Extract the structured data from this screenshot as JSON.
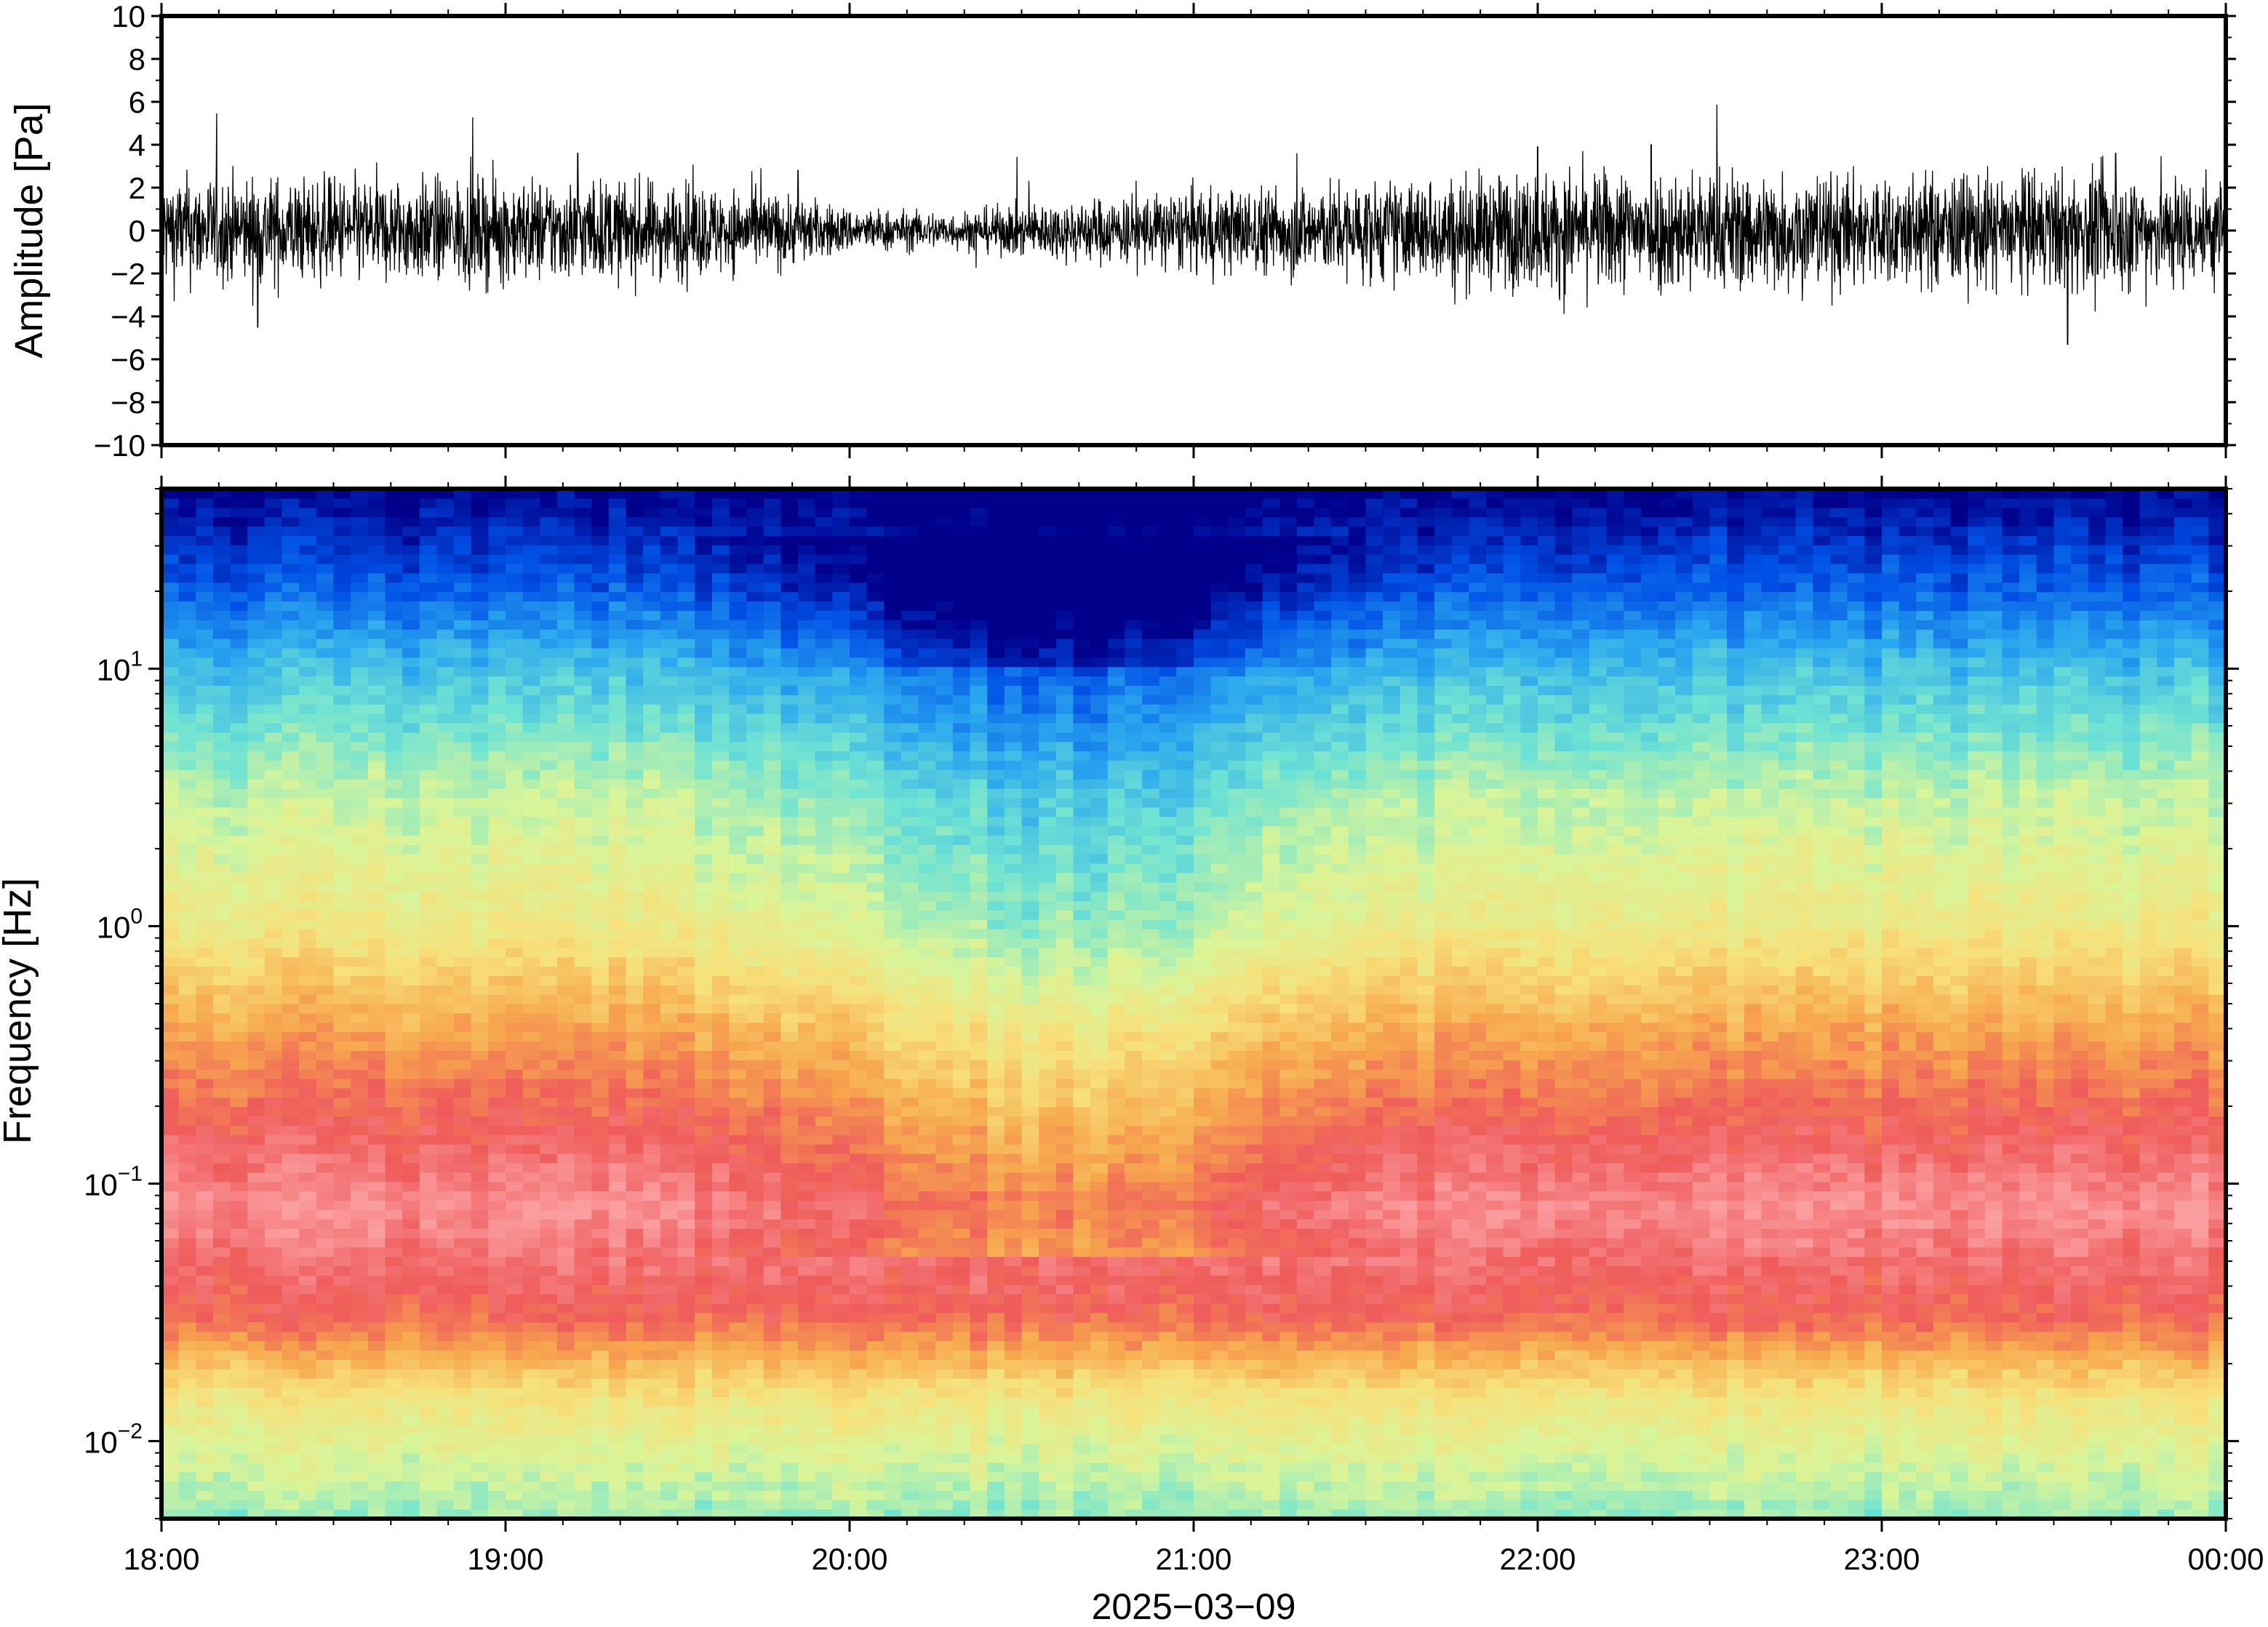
{
  "chart_data": [
    {
      "type": "line",
      "panel": "waveform",
      "ylabel": "Amplitude [Pa]",
      "ylim": [
        -10,
        10
      ],
      "yticks": [
        "10",
        "8",
        "6",
        "4",
        "2",
        "0",
        "−2",
        "−4",
        "−6",
        "−8",
        "−10"
      ],
      "ytick_values": [
        10,
        8,
        6,
        4,
        2,
        0,
        -2,
        -4,
        -6,
        -8,
        -10
      ],
      "xlim": [
        "18:00",
        "00:00"
      ],
      "line_color": "#000000",
      "envelope": {
        "times_h": [
          18.0,
          18.5,
          19.0,
          19.5,
          19.8,
          20.0,
          20.3,
          20.5,
          21.0,
          21.5,
          22.0,
          22.5,
          23.0,
          23.5,
          24.0
        ],
        "amplitude_pa": [
          1.5,
          1.4,
          1.4,
          1.3,
          1.0,
          0.6,
          0.5,
          0.7,
          1.1,
          1.3,
          1.6,
          1.7,
          1.5,
          1.6,
          1.5
        ]
      },
      "peaks": [
        {
          "time_h": 18.28,
          "value": -4.5
        },
        {
          "time_h": 19.21,
          "value": 3.6
        },
        {
          "time_h": 19.85,
          "value": 2.8
        },
        {
          "time_h": 21.3,
          "value": 3.6
        },
        {
          "time_h": 22.0,
          "value": 3.9
        },
        {
          "time_h": 22.33,
          "value": 4.0
        },
        {
          "time_h": 23.54,
          "value": -5.3
        },
        {
          "time_h": 23.68,
          "value": 3.6
        }
      ]
    },
    {
      "type": "heatmap",
      "panel": "spectrogram",
      "ylabel": "Frequency [Hz]",
      "yscale": "log",
      "ylim": [
        0.005,
        50
      ],
      "yticks": [
        {
          "base": "10",
          "exp": "1",
          "value": 10
        },
        {
          "base": "10",
          "exp": "0",
          "value": 1
        },
        {
          "base": "10",
          "exp": "−1",
          "value": 0.1
        },
        {
          "base": "10",
          "exp": "−2",
          "value": 0.01
        }
      ],
      "xlim": [
        "18:00",
        "00:00"
      ],
      "xticks": [
        "18:00",
        "19:00",
        "20:00",
        "21:00",
        "22:00",
        "23:00",
        "00:00"
      ],
      "xlabel": "2025−03−09",
      "colormap": [
        "#00008b",
        "#0050e6",
        "#2aa6ef",
        "#6fe3d3",
        "#d8f59a",
        "#f7e07a",
        "#f7a84e",
        "#ef5b5b",
        "#fb9ea0"
      ],
      "color_bands": [
        {
          "freq_hz": 50,
          "level": 0.0
        },
        {
          "freq_hz": 20,
          "level": 0.15
        },
        {
          "freq_hz": 10,
          "level": 0.3
        },
        {
          "freq_hz": 3,
          "level": 0.48
        },
        {
          "freq_hz": 1,
          "level": 0.58
        },
        {
          "freq_hz": 0.4,
          "level": 0.75
        },
        {
          "freq_hz": 0.2,
          "level": 0.85
        },
        {
          "freq_hz": 0.08,
          "level": 0.97
        },
        {
          "freq_hz": 0.03,
          "level": 0.85
        },
        {
          "freq_hz": 0.015,
          "level": 0.6
        },
        {
          "freq_hz": 0.005,
          "level": 0.42
        }
      ],
      "quiet_period": {
        "center_h": 20.6,
        "width_h": 0.7
      }
    }
  ]
}
